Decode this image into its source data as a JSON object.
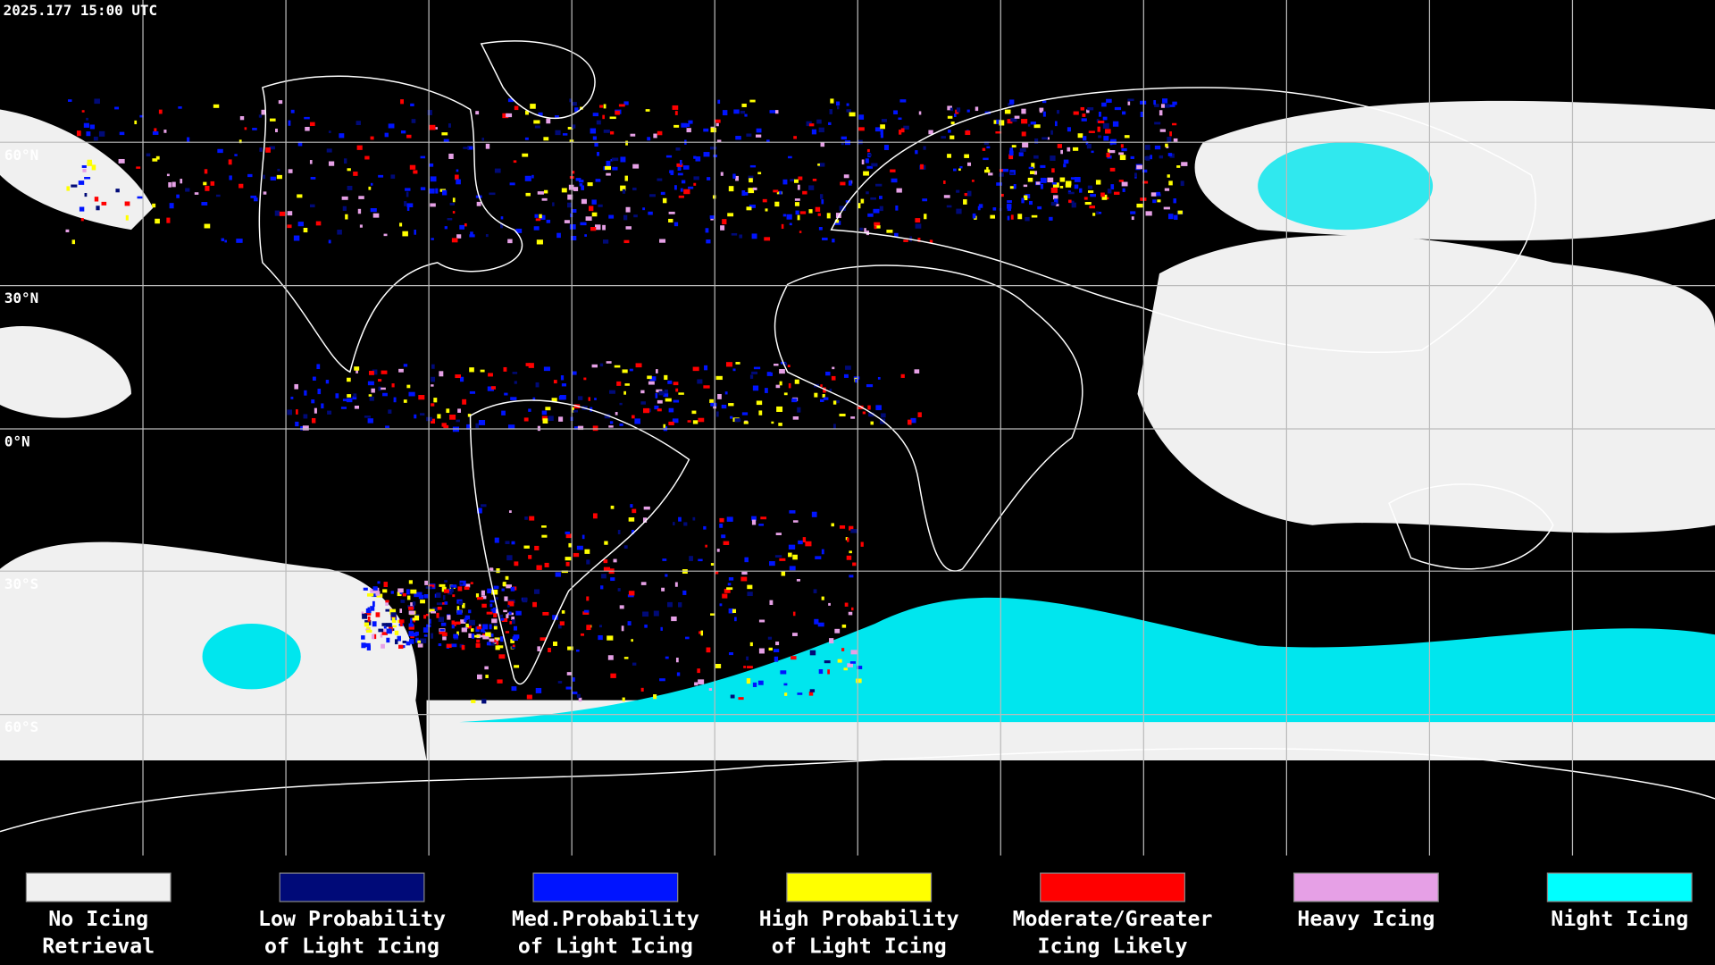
{
  "header": {
    "timestamp": "2025.177 15:00 UTC"
  },
  "latitude_labels": [
    "60°N",
    "30°N",
    "0°N",
    "30°S",
    "60°S"
  ],
  "legend": [
    {
      "lines": [
        "No Icing",
        "Retrieval"
      ],
      "color": "#f0f0f0"
    },
    {
      "lines": [
        "Low Probability",
        "of Light Icing"
      ],
      "color": "#000a78"
    },
    {
      "lines": [
        "Med.Probability",
        "of Light Icing"
      ],
      "color": "#0014ff"
    },
    {
      "lines": [
        "High Probability",
        "of Light Icing"
      ],
      "color": "#ffff00"
    },
    {
      "lines": [
        "Moderate/Greater",
        "Icing Likely"
      ],
      "color": "#ff0000"
    },
    {
      "lines": [
        "Heavy Icing"
      ],
      "color": "#e6a0e6"
    },
    {
      "lines": [
        "Night Icing"
      ],
      "color": "#00ffff"
    }
  ]
}
